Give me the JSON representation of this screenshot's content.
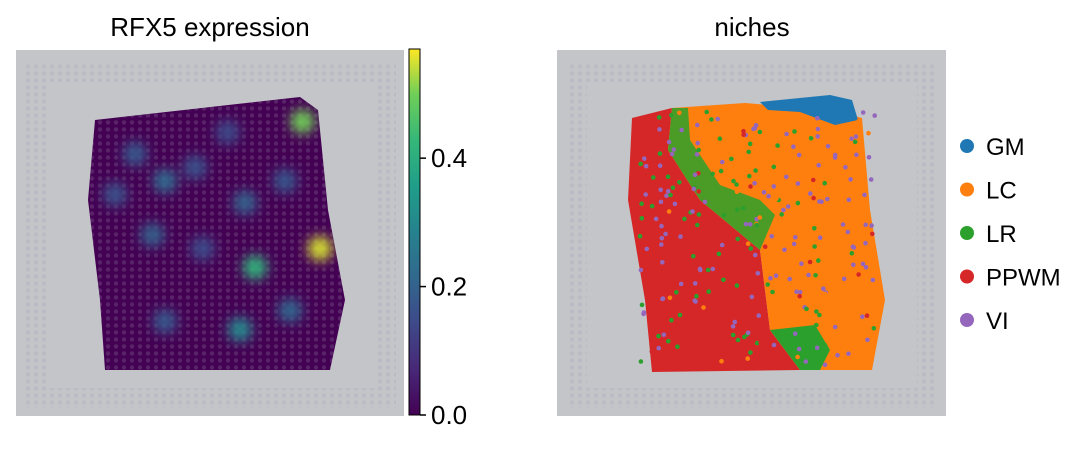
{
  "chart_data": [
    {
      "type": "scatter",
      "title": "RFX5 expression",
      "colorbar": {
        "colormap": "viridis",
        "range": [
          0.0,
          0.57
        ],
        "ticks": [
          "0.0",
          "0.2",
          "0.4"
        ],
        "tick_values": [
          0.0,
          0.2,
          0.4
        ]
      },
      "background": "tissue image",
      "hotspots": [
        {
          "x": 0.18,
          "y": 0.2,
          "value": 0.18
        },
        {
          "x": 0.3,
          "y": 0.3,
          "value": 0.22
        },
        {
          "x": 0.42,
          "y": 0.25,
          "value": 0.16
        },
        {
          "x": 0.55,
          "y": 0.12,
          "value": 0.14
        },
        {
          "x": 0.62,
          "y": 0.38,
          "value": 0.2
        },
        {
          "x": 0.78,
          "y": 0.3,
          "value": 0.17
        },
        {
          "x": 0.25,
          "y": 0.5,
          "value": 0.19
        },
        {
          "x": 0.45,
          "y": 0.55,
          "value": 0.15
        },
        {
          "x": 0.66,
          "y": 0.62,
          "value": 0.42
        },
        {
          "x": 0.92,
          "y": 0.55,
          "value": 0.55
        },
        {
          "x": 0.8,
          "y": 0.78,
          "value": 0.21
        },
        {
          "x": 0.6,
          "y": 0.85,
          "value": 0.3
        },
        {
          "x": 0.3,
          "y": 0.82,
          "value": 0.18
        },
        {
          "x": 0.85,
          "y": 0.08,
          "value": 0.5
        },
        {
          "x": 0.1,
          "y": 0.35,
          "value": 0.16
        }
      ]
    },
    {
      "type": "scatter",
      "title": "niches",
      "background": "tissue image",
      "legend": [
        {
          "label": "GM",
          "color": "#1f77b4"
        },
        {
          "label": "LC",
          "color": "#ff7f0e"
        },
        {
          "label": "LR",
          "color": "#2ca02c"
        },
        {
          "label": "PPWM",
          "color": "#d62728"
        },
        {
          "label": "VI",
          "color": "#9467bd"
        }
      ],
      "legend_position": "right"
    }
  ]
}
